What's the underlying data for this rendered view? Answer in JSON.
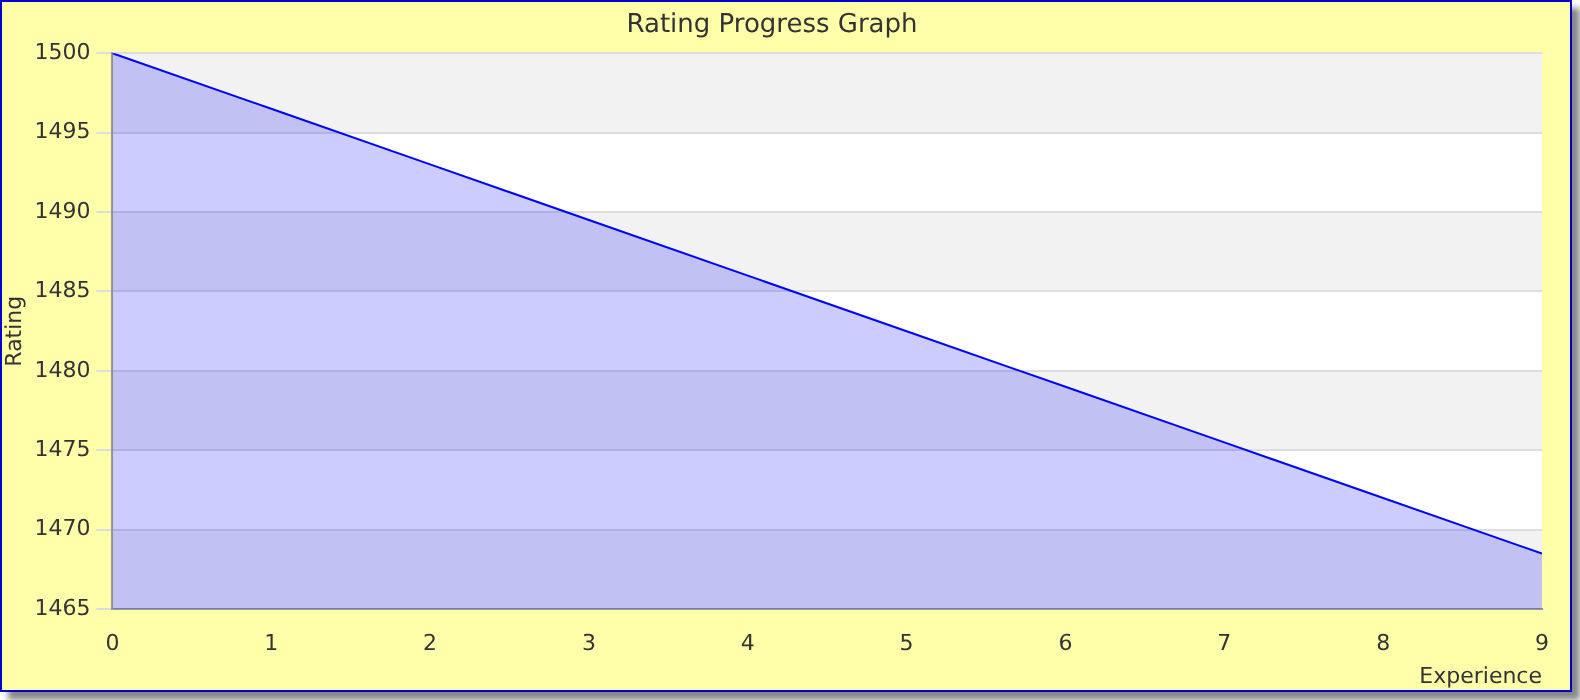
{
  "chart_data": {
    "type": "area",
    "title": "Rating Progress Graph",
    "xlabel": "Experience",
    "ylabel": "Rating",
    "x": [
      0,
      1,
      2,
      3,
      4,
      5,
      6,
      7,
      8,
      9
    ],
    "series": [
      {
        "color": "#0000ff",
        "values": [
          1500,
          1496.5,
          1493,
          1489.5,
          1486,
          1482.5,
          1479,
          1475.5,
          1472,
          1468.5
        ]
      }
    ],
    "xlim": [
      0,
      9
    ],
    "xticks": [
      0,
      1,
      2,
      3,
      4,
      5,
      6,
      7,
      8,
      9
    ],
    "ylim": [
      1465,
      1500
    ],
    "yticks": [
      1465,
      1470,
      1475,
      1480,
      1485,
      1490,
      1495,
      1500
    ],
    "grid": "y",
    "legend": false,
    "marker": "none",
    "line_style": "solid"
  }
}
